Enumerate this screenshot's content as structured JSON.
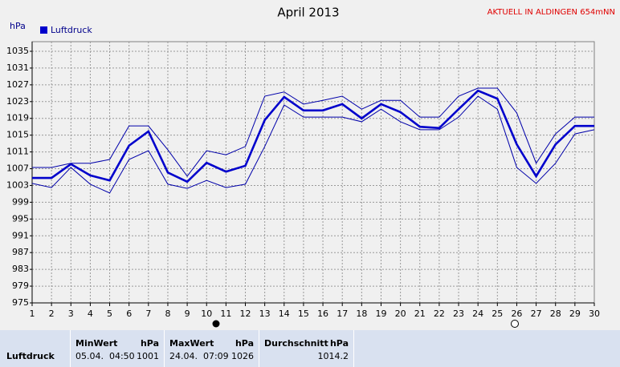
{
  "chart_data": {
    "type": "line",
    "title": "April 2013",
    "annotation": "AKTUELL IN ALDINGEN 654mNN",
    "ylabel": "hPa",
    "x": [
      1,
      2,
      3,
      4,
      5,
      6,
      7,
      8,
      9,
      10,
      11,
      12,
      13,
      14,
      15,
      16,
      17,
      18,
      19,
      20,
      21,
      22,
      23,
      24,
      25,
      26,
      27,
      28,
      29,
      30
    ],
    "xlim": [
      1,
      30
    ],
    "xticks": [
      1,
      2,
      3,
      4,
      5,
      6,
      7,
      8,
      9,
      10,
      11,
      12,
      13,
      14,
      15,
      16,
      17,
      18,
      19,
      20,
      21,
      22,
      23,
      24,
      25,
      26,
      27,
      28,
      29,
      30
    ],
    "ylim": [
      975,
      1035
    ],
    "yticks": [
      975,
      979,
      983,
      987,
      991,
      995,
      999,
      1003,
      1007,
      1011,
      1015,
      1019,
      1023,
      1027,
      1031,
      1035
    ],
    "grid": true,
    "series": [
      {
        "name": "Luftdruck",
        "color": "#0000cc",
        "values": [
          1004.8,
          1004.8,
          1008.1,
          1005.4,
          1004.2,
          1012.5,
          1015.9,
          1006.1,
          1003.9,
          1008.4,
          1006.3,
          1007.7,
          1018.6,
          1024.1,
          1020.9,
          1020.9,
          1022.4,
          1019.0,
          1022.4,
          1020.5,
          1017.0,
          1016.7,
          1021.2,
          1025.6,
          1023.7,
          1012.8,
          1005.2,
          1012.8,
          1017.2,
          1017.2
        ]
      },
      {
        "color": "#0000aa",
        "values": [
          1007.3,
          1007.3,
          1008.3,
          1008.3,
          1009.2,
          1017.2,
          1017.2,
          1011.5,
          1005.2,
          1011.3,
          1010.3,
          1012.3,
          1024.3,
          1025.3,
          1022.4,
          1023.3,
          1024.3,
          1021.2,
          1023.3,
          1023.3,
          1019.3,
          1019.3,
          1024.3,
          1026.2,
          1026.2,
          1020.3,
          1008.3,
          1015.3,
          1019.3,
          1019.3
        ]
      },
      {
        "color": "#0000aa",
        "values": [
          1003.5,
          1002.5,
          1007.3,
          1003.3,
          1001.2,
          1009.2,
          1011.3,
          1003.3,
          1002.3,
          1004.2,
          1002.5,
          1003.3,
          1012.3,
          1022.2,
          1019.3,
          1019.3,
          1019.3,
          1018.2,
          1021.2,
          1018.2,
          1016.3,
          1016.3,
          1019.3,
          1024.3,
          1021.2,
          1007.3,
          1003.5,
          1008.3,
          1015.3,
          1016.3
        ]
      }
    ]
  },
  "table": {
    "headers": [
      [
        "MinWert",
        "hPa"
      ],
      [
        "MaxWert",
        "hPa"
      ],
      [
        "Durchschnitt",
        "hPa"
      ]
    ],
    "rows": [
      {
        "label": "Luftdruck",
        "cells": [
          [
            "05.04.  04:50",
            "1001"
          ],
          [
            "24.04.  07:09",
            "1026"
          ],
          [
            "1014.2"
          ]
        ]
      }
    ]
  }
}
